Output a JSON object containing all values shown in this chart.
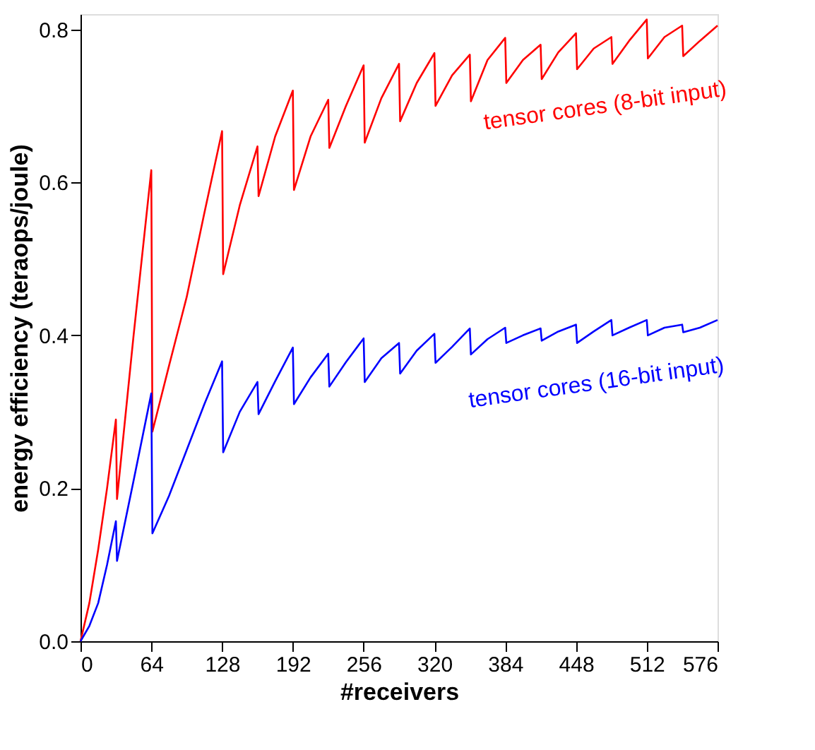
{
  "chart_data": {
    "type": "line",
    "xlabel": "#receivers",
    "ylabel": "energy efficiency (teraops/joule)",
    "xlim": [
      0,
      576
    ],
    "ylim": [
      0,
      0.82
    ],
    "xticks": [
      0,
      64,
      128,
      192,
      256,
      320,
      384,
      448,
      512,
      576
    ],
    "yticks": [
      {
        "value": 0,
        "label": "0.0"
      },
      {
        "value": 0.2,
        "label": "0.2"
      },
      {
        "value": 0.4,
        "label": "0.4"
      },
      {
        "value": 0.6,
        "label": "0.6"
      },
      {
        "value": 0.8,
        "label": "0.8"
      }
    ],
    "grid": false,
    "legend": false,
    "marker": "none",
    "line_style": "solid",
    "series": [
      {
        "name": "tensor cores (8-bit input)",
        "color": "#ff0000",
        "x": [
          0,
          8,
          16,
          24,
          32,
          33,
          48,
          64,
          65,
          80,
          96,
          112,
          128,
          129,
          144,
          160,
          161,
          176,
          192,
          193,
          208,
          224,
          225,
          240,
          256,
          257,
          272,
          288,
          289,
          304,
          320,
          321,
          336,
          352,
          353,
          368,
          384,
          385,
          400,
          416,
          417,
          432,
          448,
          449,
          464,
          480,
          481,
          496,
          512,
          513,
          528,
          544,
          545,
          560,
          576
        ],
        "values": [
          0,
          0.05,
          0.12,
          0.2,
          0.29,
          0.186,
          0.4,
          0.616,
          0.274,
          0.36,
          0.45,
          0.56,
          0.667,
          0.48,
          0.57,
          0.647,
          0.582,
          0.66,
          0.72,
          0.59,
          0.66,
          0.708,
          0.645,
          0.7,
          0.753,
          0.652,
          0.71,
          0.755,
          0.68,
          0.73,
          0.769,
          0.7,
          0.74,
          0.767,
          0.706,
          0.76,
          0.789,
          0.73,
          0.76,
          0.78,
          0.735,
          0.77,
          0.795,
          0.748,
          0.775,
          0.79,
          0.755,
          0.785,
          0.813,
          0.762,
          0.79,
          0.805,
          0.765,
          0.785,
          0.805
        ]
      },
      {
        "name": "tensor cores (16-bit input)",
        "color": "#0000ff",
        "x": [
          0,
          8,
          16,
          24,
          32,
          33,
          48,
          64,
          65,
          80,
          96,
          112,
          128,
          129,
          144,
          160,
          161,
          176,
          192,
          193,
          208,
          224,
          225,
          240,
          256,
          257,
          272,
          288,
          289,
          304,
          320,
          321,
          336,
          352,
          353,
          368,
          384,
          385,
          400,
          416,
          417,
          432,
          448,
          449,
          464,
          480,
          481,
          496,
          512,
          513,
          528,
          544,
          545,
          560,
          576
        ],
        "values": [
          0,
          0.02,
          0.05,
          0.1,
          0.157,
          0.105,
          0.21,
          0.324,
          0.141,
          0.19,
          0.25,
          0.31,
          0.366,
          0.247,
          0.3,
          0.339,
          0.297,
          0.34,
          0.384,
          0.31,
          0.345,
          0.376,
          0.333,
          0.365,
          0.396,
          0.339,
          0.37,
          0.39,
          0.35,
          0.38,
          0.402,
          0.364,
          0.385,
          0.409,
          0.375,
          0.395,
          0.41,
          0.39,
          0.4,
          0.409,
          0.393,
          0.405,
          0.414,
          0.39,
          0.405,
          0.42,
          0.4,
          0.41,
          0.42,
          0.4,
          0.41,
          0.414,
          0.404,
          0.41,
          0.42
        ]
      }
    ]
  }
}
